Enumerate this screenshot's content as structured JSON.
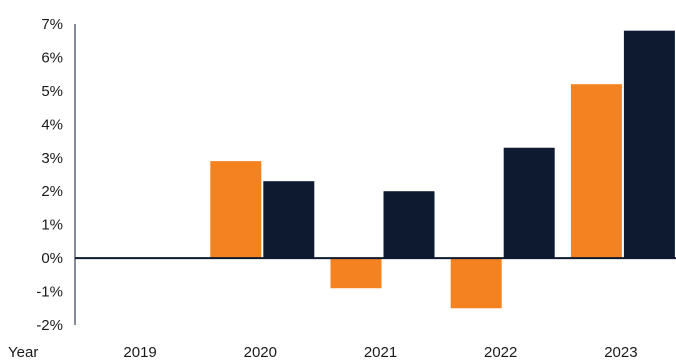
{
  "chart_data": {
    "type": "bar",
    "x_axis_label": "Year",
    "categories": [
      "2019",
      "2020",
      "2021",
      "2022",
      "2023"
    ],
    "series": [
      {
        "color": "#F58220",
        "values": [
          0.0,
          2.9,
          -0.9,
          -1.5,
          5.2
        ]
      },
      {
        "color": "#0D1A2F",
        "values": [
          0.0,
          2.3,
          2.0,
          3.3,
          6.8
        ]
      }
    ],
    "ylim": [
      -2,
      7
    ],
    "y_ticks": [
      "7%",
      "6%",
      "5%",
      "4%",
      "3%",
      "2%",
      "1%",
      "0%",
      "-1%",
      "-2%"
    ],
    "y_tick_values": [
      7,
      6,
      5,
      4,
      3,
      2,
      1,
      0,
      -1,
      -2
    ],
    "grid": false,
    "zero_line_color": "#0D1A2F"
  }
}
